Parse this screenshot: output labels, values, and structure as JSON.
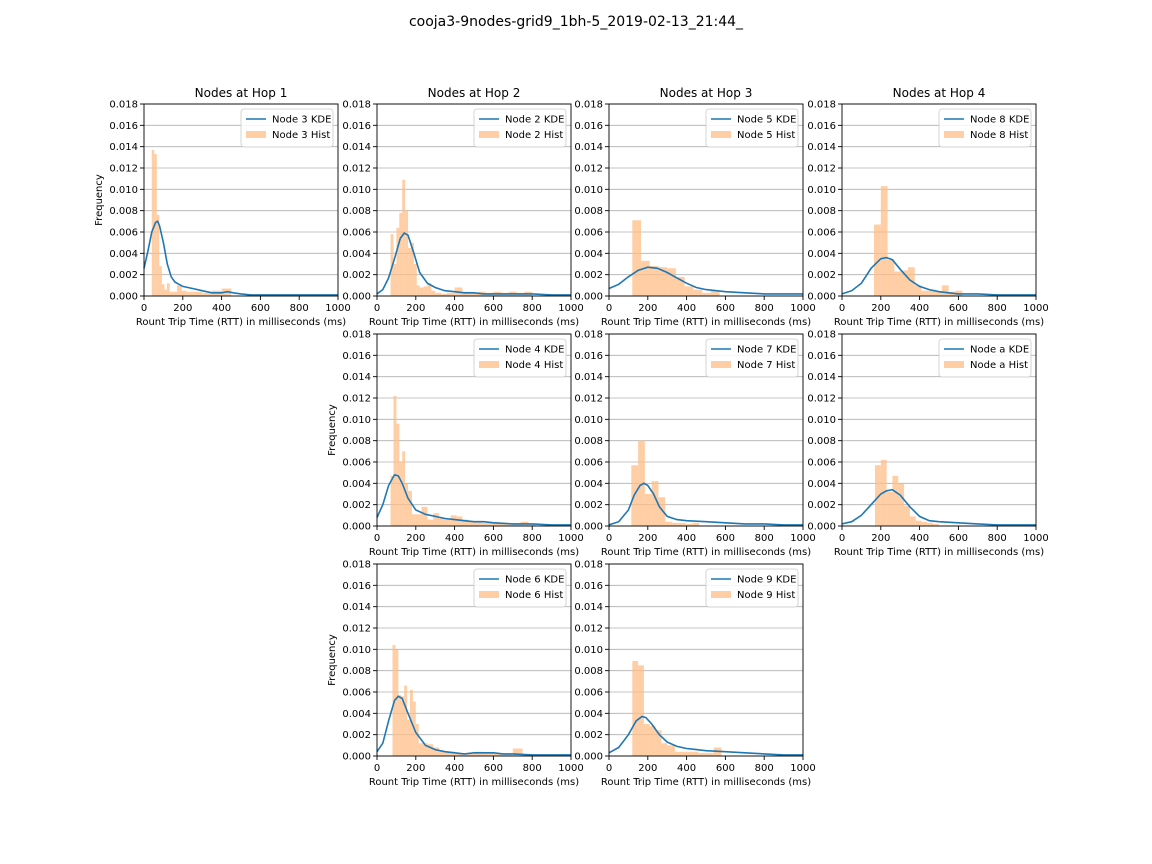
{
  "suptitle": "cooja3-9nodes-grid9_1bh-5_2019-02-13_21:44_",
  "colors": {
    "kde": "#1f77b4",
    "hist": "#ffbe86",
    "grid": "#b0b0b0",
    "axis": "#000000"
  },
  "chart_data": [
    {
      "type": "histogram+kde",
      "title": "Nodes at Hop 1",
      "xlabel": "Rount Trip Time (RTT) in milliseconds (ms)",
      "ylabel": "Frequency",
      "xlim": [
        0,
        1000
      ],
      "ylim": [
        0,
        0.018
      ],
      "xticks": [
        "0",
        "200",
        "400",
        "600",
        "800",
        "1000"
      ],
      "yticks": [
        "0.000",
        "0.002",
        "0.004",
        "0.006",
        "0.008",
        "0.010",
        "0.012",
        "0.014",
        "0.016",
        "0.018"
      ],
      "grid": "horizontal",
      "legend": "upper right",
      "kde": {
        "name": "Node 3 KDE",
        "x": [
          0,
          20,
          40,
          60,
          70,
          80,
          100,
          120,
          140,
          160,
          200,
          250,
          300,
          350,
          400,
          430,
          460,
          500,
          550,
          600,
          700,
          800,
          900,
          1000
        ],
        "y": [
          0.0026,
          0.0042,
          0.006,
          0.0069,
          0.007,
          0.0066,
          0.005,
          0.003,
          0.0018,
          0.0013,
          0.0009,
          0.0007,
          0.0005,
          0.0003,
          0.0003,
          0.0004,
          0.0003,
          0.0002,
          0.0001,
          0.0001,
          0.0001,
          0.0001,
          0.0001,
          0.0001
        ]
      },
      "hist": {
        "name": "Node 3 Hist",
        "bin_edges": [
          40,
          53,
          66,
          79,
          92,
          105,
          118,
          132,
          145,
          170,
          195,
          220,
          300,
          350,
          400,
          450
        ],
        "values": [
          0.0137,
          0.0133,
          0.0076,
          0.0028,
          0.0011,
          0.0006,
          0.0012,
          0.0004,
          0.0004,
          0.001,
          0.0005,
          0.0004,
          0.0003,
          0.0005,
          0.0007
        ]
      }
    },
    {
      "type": "histogram+kde",
      "title": "Nodes at Hop 2",
      "xlabel": "Rount Trip Time (RTT) in milliseconds (ms)",
      "ylabel": "",
      "xlim": [
        0,
        1000
      ],
      "ylim": [
        0,
        0.018
      ],
      "xticks": [
        "0",
        "200",
        "400",
        "600",
        "800",
        "1000"
      ],
      "yticks": [
        "0.000",
        "0.002",
        "0.004",
        "0.006",
        "0.008",
        "0.010",
        "0.012",
        "0.014",
        "0.016",
        "0.018"
      ],
      "grid": "horizontal",
      "legend": "upper right",
      "kde": {
        "name": "Node 2 KDE",
        "x": [
          0,
          30,
          60,
          90,
          120,
          140,
          160,
          190,
          220,
          260,
          300,
          350,
          400,
          450,
          500,
          550,
          600,
          700,
          800,
          900,
          1000
        ],
        "y": [
          0.0002,
          0.0006,
          0.0017,
          0.0035,
          0.0054,
          0.0059,
          0.0057,
          0.004,
          0.0022,
          0.0012,
          0.0008,
          0.0005,
          0.0004,
          0.0003,
          0.0003,
          0.0002,
          0.0002,
          0.0002,
          0.0002,
          0.0001,
          0.0001
        ]
      },
      "hist": {
        "name": "Node 2 Hist",
        "bin_edges": [
          70,
          85,
          100,
          115,
          130,
          145,
          160,
          175,
          190,
          205,
          220,
          240,
          260,
          280,
          300,
          330,
          360,
          400,
          440,
          480,
          520,
          560,
          600,
          640,
          680,
          720,
          760,
          800
        ],
        "values": [
          0.0058,
          0.003,
          0.0064,
          0.0078,
          0.0109,
          0.008,
          0.0045,
          0.005,
          0.003,
          0.001,
          0.0008,
          0.0009,
          0.0012,
          0.0005,
          0.0003,
          0.0002,
          0.0003,
          0.0008,
          0.0004,
          0.0003,
          0.0004,
          0.0003,
          0.0004,
          0.0003,
          0.0004,
          0.0003,
          0.0004
        ]
      }
    },
    {
      "type": "histogram+kde",
      "title": "Nodes at Hop 3",
      "xlabel": "Rount Trip Time (RTT) in milliseconds (ms)",
      "ylabel": "",
      "xlim": [
        0,
        1000
      ],
      "ylim": [
        0,
        0.018
      ],
      "xticks": [
        "0",
        "200",
        "400",
        "600",
        "800",
        "1000"
      ],
      "yticks": [
        "0.000",
        "0.002",
        "0.004",
        "0.006",
        "0.008",
        "0.010",
        "0.012",
        "0.014",
        "0.016",
        "0.018"
      ],
      "grid": "horizontal",
      "legend": "upper right",
      "kde": {
        "name": "Node 5 KDE",
        "x": [
          0,
          50,
          100,
          150,
          200,
          250,
          300,
          350,
          400,
          450,
          500,
          600,
          700,
          800,
          900,
          1000
        ],
        "y": [
          0.0007,
          0.0011,
          0.0018,
          0.0024,
          0.0027,
          0.0026,
          0.0022,
          0.0017,
          0.0012,
          0.0008,
          0.0006,
          0.0004,
          0.0003,
          0.0002,
          0.0002,
          0.0002
        ]
      },
      "hist": {
        "name": "Node 5 Hist",
        "bin_edges": [
          120,
          165,
          210,
          255,
          300,
          345,
          390,
          435,
          480,
          525,
          570
        ],
        "values": [
          0.0071,
          0.0033,
          0.0028,
          0.0027,
          0.0026,
          0.0018,
          0.0009,
          0.0006,
          0.0003,
          0.0005
        ]
      }
    },
    {
      "type": "histogram+kde",
      "title": "Nodes at Hop 4",
      "xlabel": "Rount Trip Time (RTT) in milliseconds (ms)",
      "ylabel": "",
      "xlim": [
        0,
        1000
      ],
      "ylim": [
        0,
        0.018
      ],
      "xticks": [
        "0",
        "200",
        "400",
        "600",
        "800",
        "1000"
      ],
      "yticks": [
        "0.000",
        "0.002",
        "0.004",
        "0.006",
        "0.008",
        "0.010",
        "0.012",
        "0.014",
        "0.016",
        "0.018"
      ],
      "grid": "horizontal",
      "legend": "upper right",
      "kde": {
        "name": "Node 8 KDE",
        "x": [
          0,
          50,
          100,
          150,
          200,
          230,
          260,
          300,
          350,
          400,
          450,
          500,
          550,
          600,
          700,
          800,
          900,
          1000
        ],
        "y": [
          0.0002,
          0.0005,
          0.0012,
          0.0026,
          0.0035,
          0.0036,
          0.0034,
          0.0025,
          0.0015,
          0.0009,
          0.0006,
          0.0004,
          0.0003,
          0.0002,
          0.0002,
          0.0001,
          0.0001,
          0.0001
        ]
      },
      "hist": {
        "name": "Node 8 Hist",
        "bin_edges": [
          165,
          200,
          235,
          270,
          305,
          340,
          375,
          410,
          445,
          480,
          515,
          550,
          585,
          620
        ],
        "values": [
          0.0067,
          0.0103,
          0.0034,
          0.0023,
          0.0024,
          0.0027,
          0.001,
          0.0005,
          0.0005,
          0.0004,
          0.001,
          0.0004,
          0.0005
        ]
      }
    },
    {
      "type": "histogram+kde",
      "title": "",
      "xlabel": "Rount Trip Time (RTT) in milliseconds (ms)",
      "ylabel": "Frequency",
      "xlim": [
        0,
        1000
      ],
      "ylim": [
        0,
        0.018
      ],
      "xticks": [
        "0",
        "200",
        "400",
        "600",
        "800",
        "1000"
      ],
      "yticks": [
        "0.000",
        "0.002",
        "0.004",
        "0.006",
        "0.008",
        "0.010",
        "0.012",
        "0.014",
        "0.016",
        "0.018"
      ],
      "grid": "horizontal",
      "legend": "upper right",
      "kde": {
        "name": "Node 4 KDE",
        "x": [
          0,
          30,
          60,
          90,
          110,
          130,
          160,
          200,
          250,
          300,
          350,
          400,
          450,
          500,
          550,
          600,
          700,
          800,
          900,
          1000
        ],
        "y": [
          0.0008,
          0.002,
          0.0038,
          0.0048,
          0.0047,
          0.004,
          0.0026,
          0.0015,
          0.0011,
          0.0009,
          0.0007,
          0.0006,
          0.0005,
          0.0004,
          0.0004,
          0.0003,
          0.0002,
          0.0002,
          0.0001,
          0.0001
        ]
      },
      "hist": {
        "name": "Node 4 Hist",
        "bin_edges": [
          70,
          85,
          100,
          115,
          130,
          145,
          160,
          180,
          200,
          230,
          260,
          290,
          320,
          350,
          380,
          410,
          440,
          470,
          500,
          540,
          580,
          620,
          660,
          700,
          740,
          780,
          820
        ],
        "values": [
          0.0047,
          0.0122,
          0.0096,
          0.006,
          0.007,
          0.004,
          0.0033,
          0.0011,
          0.0011,
          0.0018,
          0.0006,
          0.0012,
          0.0008,
          0.0006,
          0.001,
          0.0009,
          0.0006,
          0.0004,
          0.0004,
          0.0003,
          0.0004,
          0.0003,
          0.0002,
          0.0002,
          0.0004,
          0.0002
        ]
      }
    },
    {
      "type": "histogram+kde",
      "title": "",
      "xlabel": "Rount Trip Time (RTT) in milliseconds (ms)",
      "ylabel": "",
      "xlim": [
        0,
        1000
      ],
      "ylim": [
        0,
        0.018
      ],
      "xticks": [
        "0",
        "200",
        "400",
        "600",
        "800",
        "1000"
      ],
      "yticks": [
        "0.000",
        "0.002",
        "0.004",
        "0.006",
        "0.008",
        "0.010",
        "0.012",
        "0.014",
        "0.016",
        "0.018"
      ],
      "grid": "horizontal",
      "legend": "upper right",
      "kde": {
        "name": "Node 7 KDE",
        "x": [
          0,
          50,
          100,
          130,
          160,
          180,
          200,
          230,
          260,
          300,
          350,
          400,
          500,
          600,
          700,
          800,
          900,
          1000
        ],
        "y": [
          0.0001,
          0.0004,
          0.0015,
          0.0029,
          0.0038,
          0.004,
          0.0038,
          0.003,
          0.0018,
          0.0009,
          0.0006,
          0.0005,
          0.0004,
          0.0003,
          0.0002,
          0.0002,
          0.0001,
          0.0001
        ]
      },
      "hist": {
        "name": "Node 7 Hist",
        "bin_edges": [
          115,
          150,
          185,
          220,
          255,
          290,
          325,
          360,
          395,
          430,
          465
        ],
        "values": [
          0.0057,
          0.008,
          0.003,
          0.0042,
          0.0027,
          0.0004,
          0.0003,
          0.0003,
          0.0002,
          0.0003
        ]
      }
    },
    {
      "type": "histogram+kde",
      "title": "",
      "xlabel": "Rount Trip Time (RTT) in milliseconds (ms)",
      "ylabel": "",
      "xlim": [
        0,
        1000
      ],
      "ylim": [
        0,
        0.018
      ],
      "xticks": [
        "0",
        "200",
        "400",
        "600",
        "800",
        "1000"
      ],
      "yticks": [
        "0.000",
        "0.002",
        "0.004",
        "0.006",
        "0.008",
        "0.010",
        "0.012",
        "0.014",
        "0.016",
        "0.018"
      ],
      "grid": "horizontal",
      "legend": "upper right",
      "kde": {
        "name": "Node a KDE",
        "x": [
          0,
          50,
          100,
          150,
          200,
          230,
          260,
          300,
          350,
          400,
          450,
          500,
          600,
          700,
          800,
          900,
          1000
        ],
        "y": [
          0.0002,
          0.0004,
          0.001,
          0.002,
          0.003,
          0.0033,
          0.0034,
          0.0029,
          0.0018,
          0.0009,
          0.0005,
          0.0004,
          0.0003,
          0.0002,
          0.0001,
          0.0001,
          0.0001
        ]
      },
      "hist": {
        "name": "Node a Hist",
        "bin_edges": [
          170,
          200,
          230,
          260,
          290,
          320,
          350,
          380,
          410,
          440,
          470,
          500
        ],
        "values": [
          0.0057,
          0.0062,
          0.0032,
          0.0047,
          0.004,
          0.0019,
          0.0009,
          0.0005,
          0.0004,
          0.0003,
          0.0002
        ]
      }
    },
    {
      "type": "histogram+kde",
      "title": "",
      "xlabel": "Rount Trip Time (RTT) in milliseconds (ms)",
      "ylabel": "Frequency",
      "xlim": [
        0,
        1000
      ],
      "ylim": [
        0,
        0.018
      ],
      "xticks": [
        "0",
        "200",
        "400",
        "600",
        "800",
        "1000"
      ],
      "yticks": [
        "0.000",
        "0.002",
        "0.004",
        "0.006",
        "0.008",
        "0.010",
        "0.012",
        "0.014",
        "0.016",
        "0.018"
      ],
      "grid": "horizontal",
      "legend": "upper right",
      "kde": {
        "name": "Node 6 KDE",
        "x": [
          0,
          30,
          60,
          90,
          110,
          130,
          160,
          200,
          250,
          300,
          350,
          400,
          450,
          500,
          550,
          600,
          650,
          700,
          800,
          900,
          1000
        ],
        "y": [
          0.0004,
          0.0012,
          0.0033,
          0.0052,
          0.0056,
          0.0054,
          0.004,
          0.0022,
          0.001,
          0.0006,
          0.0004,
          0.0003,
          0.0002,
          0.0003,
          0.0003,
          0.0003,
          0.0002,
          0.0002,
          0.0001,
          0.0001,
          0.0001
        ]
      },
      "hist": {
        "name": "Node 6 Hist",
        "bin_edges": [
          80,
          95,
          110,
          125,
          140,
          155,
          170,
          185,
          200,
          215,
          230,
          260,
          290,
          320,
          350,
          400,
          450,
          500,
          550,
          600,
          650,
          700,
          750,
          800
        ],
        "values": [
          0.0104,
          0.01,
          0.0057,
          0.0056,
          0.0066,
          0.0034,
          0.0062,
          0.0051,
          0.003,
          0.0012,
          0.0012,
          0.0011,
          0.0008,
          0.0005,
          0.0004,
          0.0002,
          0.0002,
          0.0004,
          0.0003,
          0.0002,
          0.0002,
          0.0007,
          0.0002
        ]
      }
    },
    {
      "type": "histogram+kde",
      "title": "",
      "xlabel": "Rount Trip Time (RTT) in milliseconds (ms)",
      "ylabel": "",
      "xlim": [
        0,
        1000
      ],
      "ylim": [
        0,
        0.018
      ],
      "xticks": [
        "0",
        "200",
        "400",
        "600",
        "800",
        "1000"
      ],
      "yticks": [
        "0.000",
        "0.002",
        "0.004",
        "0.006",
        "0.008",
        "0.010",
        "0.012",
        "0.014",
        "0.016",
        "0.018"
      ],
      "grid": "horizontal",
      "legend": "upper right",
      "kde": {
        "name": "Node 9 KDE",
        "x": [
          0,
          50,
          100,
          140,
          170,
          190,
          220,
          260,
          300,
          350,
          400,
          450,
          500,
          600,
          700,
          800,
          900,
          1000
        ],
        "y": [
          0.0003,
          0.0008,
          0.002,
          0.0033,
          0.0037,
          0.0036,
          0.003,
          0.002,
          0.0013,
          0.0009,
          0.0007,
          0.0006,
          0.0005,
          0.0004,
          0.0003,
          0.0002,
          0.0001,
          0.0001
        ]
      },
      "hist": {
        "name": "Node 9 Hist",
        "bin_edges": [
          120,
          150,
          180,
          210,
          240,
          270,
          300,
          340,
          380,
          420,
          460,
          500,
          540,
          580
        ],
        "values": [
          0.0089,
          0.0085,
          0.003,
          0.0028,
          0.0024,
          0.0012,
          0.001,
          0.0004,
          0.0004,
          0.0004,
          0.0003,
          0.0003,
          0.0008
        ]
      }
    }
  ]
}
